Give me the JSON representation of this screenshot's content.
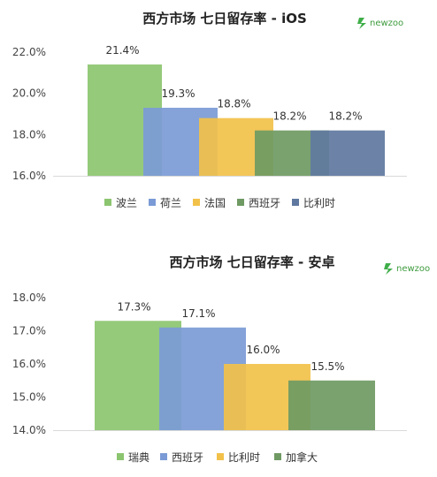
{
  "brand": {
    "logo_text": "newzoo",
    "logo_color": "#3fae49"
  },
  "chart_data": [
    {
      "type": "bar",
      "title": "西方市场 七日留存率 - iOS",
      "categories": [
        "波兰",
        "荷兰",
        "法国",
        "西班牙",
        "比利时"
      ],
      "values": [
        21.4,
        19.3,
        18.8,
        18.2,
        18.2
      ],
      "value_labels": [
        "21.4%",
        "19.3%",
        "18.8%",
        "18.2%",
        "18.2%"
      ],
      "colors": [
        "#8cc56f",
        "#7b9bd6",
        "#f2c14a",
        "#6f9a63",
        "#5f789f"
      ],
      "ylim": [
        16.0,
        22.0
      ],
      "yticks": [
        "22.0%",
        "20.0%",
        "18.0%",
        "16.0%"
      ],
      "ytick_values": [
        22,
        20,
        18,
        16
      ],
      "grid": false,
      "legend_position": "bottom",
      "xlabel": "",
      "ylabel": ""
    },
    {
      "type": "bar",
      "title": "西方市场 七日留存率 - 安卓",
      "categories": [
        "瑞典",
        "西班牙",
        "比利时",
        "加拿大"
      ],
      "values": [
        17.3,
        17.1,
        16.0,
        15.5
      ],
      "value_labels": [
        "17.3%",
        "17.1%",
        "16.0%",
        "15.5%"
      ],
      "colors": [
        "#8cc56f",
        "#7b9bd6",
        "#f2c14a",
        "#6f9a63"
      ],
      "ylim": [
        14.0,
        18.0
      ],
      "yticks": [
        "18.0%",
        "17.0%",
        "16.0%",
        "15.0%",
        "14.0%"
      ],
      "ytick_values": [
        18,
        17,
        16,
        15,
        14
      ],
      "grid": false,
      "legend_position": "bottom",
      "xlabel": "",
      "ylabel": ""
    }
  ]
}
